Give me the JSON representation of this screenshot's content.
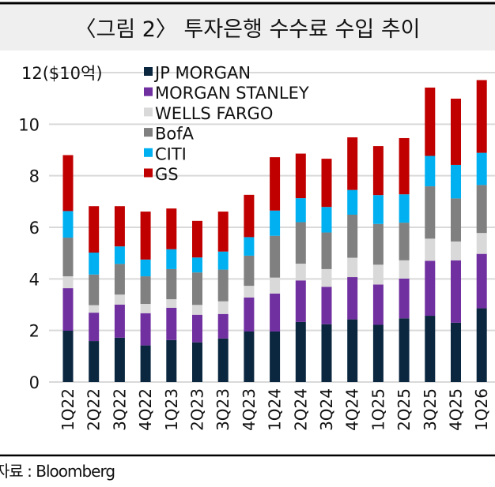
{
  "chart_data": {
    "type": "bar",
    "stacked": true,
    "title": "〈그림 2〉 투자은행 수수료 수입 추이",
    "ylabel": "($10억)",
    "ylim": [
      0,
      12
    ],
    "yticks": [
      "0",
      "2",
      "4",
      "6",
      "8",
      "10",
      "12"
    ],
    "grid": true,
    "legend_position": "top-left",
    "categories": [
      "1Q22",
      "2Q22",
      "3Q22",
      "4Q22",
      "1Q23",
      "2Q23",
      "3Q23",
      "4Q23",
      "1Q24",
      "2Q24",
      "3Q24",
      "4Q24",
      "1Q25",
      "2Q25",
      "3Q25",
      "4Q25",
      "1Q26"
    ],
    "series": [
      {
        "name": "JP MORGAN",
        "color": "#0b2740",
        "values": [
          1.99,
          1.59,
          1.72,
          1.42,
          1.63,
          1.54,
          1.69,
          1.96,
          1.96,
          2.33,
          2.24,
          2.43,
          2.22,
          2.47,
          2.57,
          2.3,
          2.86
        ]
      },
      {
        "name": "MORGAN STANLEY",
        "color": "#7030a0",
        "values": [
          1.65,
          1.1,
          1.28,
          1.25,
          1.25,
          1.07,
          0.95,
          1.32,
          1.47,
          1.61,
          1.45,
          1.64,
          1.56,
          1.54,
          2.13,
          2.42,
          2.11
        ]
      },
      {
        "name": "WELLS FARGO",
        "color": "#d9d9d9",
        "values": [
          0.46,
          0.29,
          0.39,
          0.36,
          0.33,
          0.38,
          0.49,
          0.45,
          0.62,
          0.65,
          0.69,
          0.75,
          0.77,
          0.71,
          0.86,
          0.73,
          0.81
        ]
      },
      {
        "name": "BofA",
        "color": "#808080",
        "values": [
          1.5,
          1.19,
          1.19,
          1.07,
          1.17,
          1.26,
          1.23,
          1.17,
          1.62,
          1.61,
          1.42,
          1.67,
          1.58,
          1.46,
          2.03,
          1.67,
          1.86
        ]
      },
      {
        "name": "CITI",
        "color": "#00b0f0",
        "values": [
          1.03,
          0.85,
          0.68,
          0.65,
          0.77,
          0.58,
          0.7,
          0.72,
          0.98,
          0.93,
          0.99,
          0.96,
          1.12,
          1.1,
          1.18,
          1.3,
          1.25
        ]
      },
      {
        "name": "GS",
        "color": "#c00000",
        "values": [
          2.17,
          1.8,
          1.56,
          1.86,
          1.58,
          1.42,
          1.55,
          1.64,
          2.07,
          1.73,
          1.87,
          2.04,
          1.9,
          2.18,
          2.65,
          2.57,
          2.82
        ]
      }
    ],
    "source": "자료 : Bloomberg"
  }
}
